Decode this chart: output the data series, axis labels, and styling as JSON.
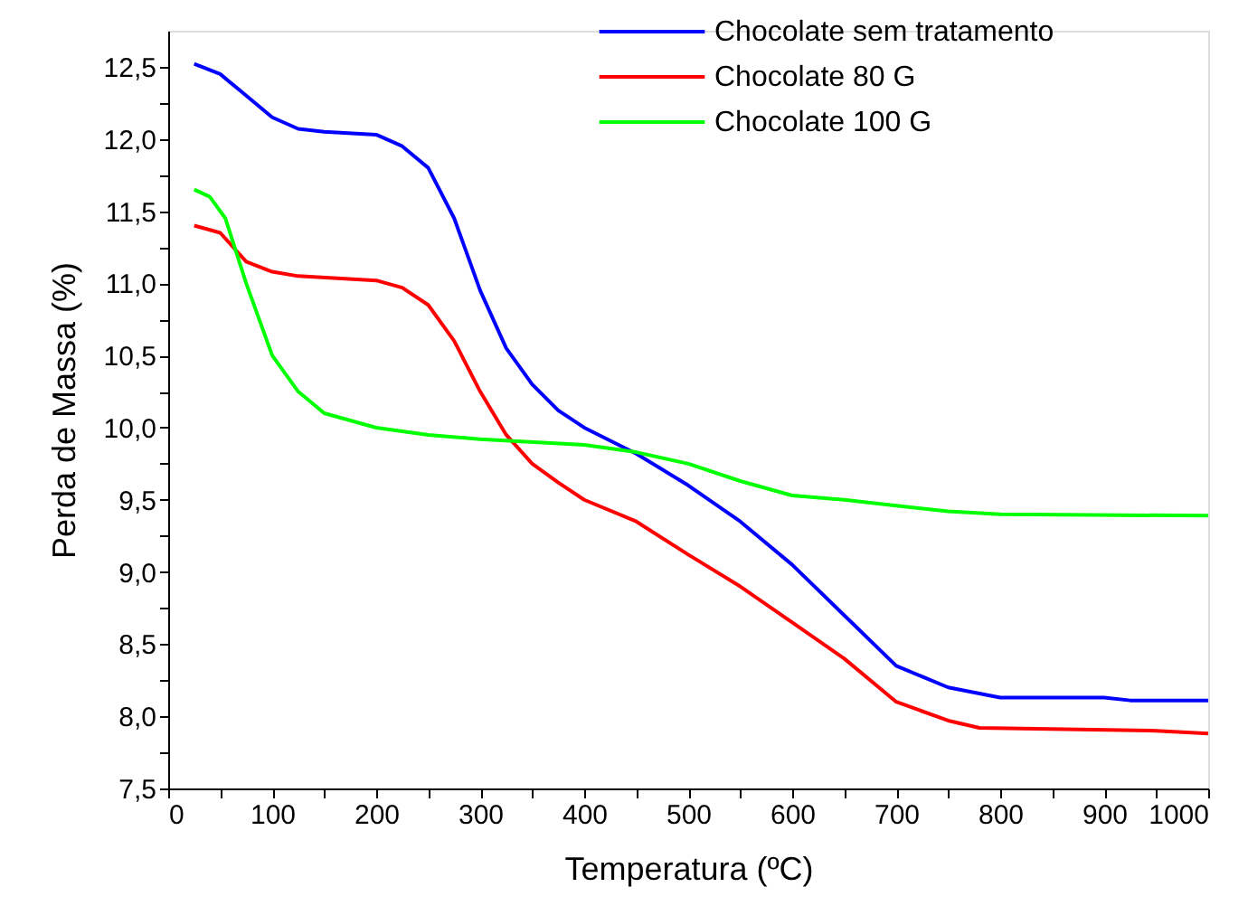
{
  "chart_data": {
    "type": "line",
    "xlabel": "Temperatura (ºC)",
    "ylabel": "Perda de Massa (%)",
    "xlim": [
      0,
      1000
    ],
    "ylim": [
      7.5,
      12.75
    ],
    "xticks": [
      0,
      {
        "value": 50,
        "label": null
      },
      100,
      {
        "value": 150,
        "label": null
      },
      200,
      {
        "value": 250,
        "label": null
      },
      300,
      {
        "value": 350,
        "label": null
      },
      400,
      {
        "value": 450,
        "label": null
      },
      500,
      {
        "value": 550,
        "label": null
      },
      600,
      {
        "value": 650,
        "label": null
      },
      700,
      {
        "value": 750,
        "label": null
      },
      800,
      {
        "value": 850,
        "label": null
      },
      900,
      {
        "value": 950,
        "label": null
      },
      1000
    ],
    "yticks": [
      {
        "value": 7.5,
        "label": "7,5"
      },
      {
        "value": 7.75,
        "label": null
      },
      {
        "value": 8,
        "label": "8,0"
      },
      {
        "value": 8.25,
        "label": null
      },
      {
        "value": 8.5,
        "label": "8,5"
      },
      {
        "value": 8.75,
        "label": null
      },
      {
        "value": 9,
        "label": "9,0"
      },
      {
        "value": 9.25,
        "label": null
      },
      {
        "value": 9.5,
        "label": "9,5"
      },
      {
        "value": 9.75,
        "label": null
      },
      {
        "value": 10,
        "label": "10,0"
      },
      {
        "value": 10.25,
        "label": null
      },
      {
        "value": 10.5,
        "label": "10,5"
      },
      {
        "value": 10.75,
        "label": null
      },
      {
        "value": 11,
        "label": "11,0"
      },
      {
        "value": 11.25,
        "label": null
      },
      {
        "value": 11.5,
        "label": "11,5"
      },
      {
        "value": 11.75,
        "label": null
      },
      {
        "value": 12,
        "label": "12,0"
      },
      {
        "value": 12.25,
        "label": null
      },
      {
        "value": 12.5,
        "label": "12,5"
      }
    ],
    "grid": false,
    "legend": "top right",
    "marker": "none",
    "line_style": "solid",
    "series": [
      {
        "name": "Chocolate sem tratamento",
        "color": "#0000ff",
        "x": [
          25,
          50,
          75,
          100,
          125,
          150,
          200,
          225,
          250,
          275,
          300,
          325,
          350,
          375,
          400,
          450,
          500,
          550,
          600,
          650,
          700,
          750,
          800,
          900,
          925,
          1000
        ],
        "values": [
          12.52,
          12.45,
          12.3,
          12.15,
          12.07,
          12.05,
          12.03,
          11.95,
          11.8,
          11.45,
          10.95,
          10.55,
          10.3,
          10.12,
          10.0,
          9.82,
          9.6,
          9.35,
          9.05,
          8.7,
          8.35,
          8.2,
          8.13,
          8.13,
          8.11,
          8.11
        ]
      },
      {
        "name": "Chocolate 80 G",
        "color": "#ff0000",
        "x": [
          25,
          50,
          75,
          100,
          125,
          200,
          225,
          250,
          275,
          300,
          325,
          350,
          375,
          400,
          450,
          500,
          550,
          600,
          650,
          700,
          750,
          780,
          950,
          1000
        ],
        "values": [
          11.4,
          11.35,
          11.15,
          11.08,
          11.05,
          11.02,
          10.97,
          10.85,
          10.6,
          10.25,
          9.95,
          9.75,
          9.62,
          9.5,
          9.35,
          9.12,
          8.9,
          8.65,
          8.4,
          8.1,
          7.97,
          7.92,
          7.9,
          7.88
        ]
      },
      {
        "name": "Chocolate 100 G",
        "color": "#00ff00",
        "x": [
          25,
          40,
          55,
          75,
          100,
          125,
          150,
          200,
          250,
          300,
          400,
          450,
          500,
          550,
          600,
          650,
          700,
          750,
          800,
          1000
        ],
        "values": [
          11.65,
          11.6,
          11.45,
          11.0,
          10.5,
          10.25,
          10.1,
          10.0,
          9.95,
          9.92,
          9.88,
          9.83,
          9.75,
          9.63,
          9.53,
          9.5,
          9.46,
          9.42,
          9.4,
          9.39
        ]
      }
    ]
  }
}
